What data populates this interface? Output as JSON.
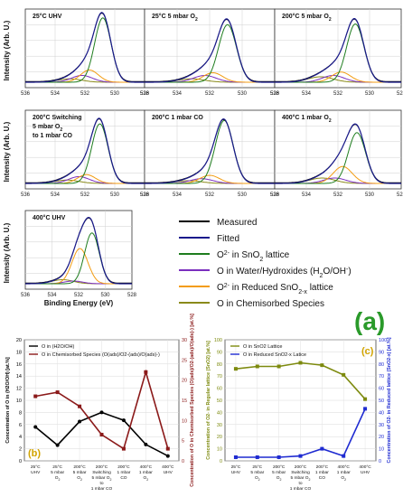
{
  "panel_labels": {
    "a": "(a)",
    "b": "(b)",
    "c": "(c)"
  },
  "colors": {
    "measured": "#000000",
    "fitted": "#1a1a8c",
    "lattice": "#1e7d1e",
    "water": "#7b2fbe",
    "reduced": "#f39c12",
    "chemisorbed": "#8a8a1a",
    "c_green": "#7d8a0e",
    "c_blue": "#1f2bd1",
    "b_black": "#000000",
    "b_red": "#8b1a1a",
    "label_green": "#2a9a2a"
  },
  "xps": {
    "ylabel": "Intensity (Arb. U.)",
    "xlabel": "Binding Energy (eV)",
    "ticks": [
      "536",
      "534",
      "532",
      "530",
      "528"
    ],
    "panels": [
      {
        "title": "25°C  UHV",
        "lattice": 530.8,
        "heights": [
          1.0,
          0.95,
          0.1,
          0.18,
          0.05
        ]
      },
      {
        "title": "25°C 5 mbar O",
        "sub": "2",
        "lattice": 530.9,
        "heights": [
          0.92,
          0.85,
          0.1,
          0.14,
          0.05
        ]
      },
      {
        "title": "200°C 5 mbar O",
        "sub": "2",
        "lattice": 530.9,
        "heights": [
          0.92,
          0.86,
          0.1,
          0.15,
          0.08
        ]
      },
      {
        "title": "200°C Switching",
        "lines": [
          "5 mbar O",
          "to 1 mbar CO"
        ],
        "lattice": 531.0,
        "heights": [
          0.95,
          0.88,
          0.1,
          0.13,
          0.05
        ]
      },
      {
        "title": "200°C 1 mbar CO",
        "lattice": 531.1,
        "heights": [
          0.95,
          0.93,
          0.07,
          0.12,
          0.04
        ]
      },
      {
        "title": "400°C 1 mbar O",
        "sub": "2",
        "lattice": 530.8,
        "heights": [
          0.82,
          0.75,
          0.08,
          0.25,
          0.08
        ]
      },
      {
        "title": "400°C UHV",
        "lattice": 531.0,
        "heights": [
          0.8,
          0.75,
          0.04,
          0.52,
          0.06
        ]
      }
    ]
  },
  "legend": [
    {
      "key": "measured",
      "text": "Measured"
    },
    {
      "key": "fitted",
      "text": "Fitted"
    },
    {
      "key": "lattice",
      "text": "O",
      "sup": "2-",
      "rest": " in SnO",
      "sub": "2",
      "rest2": " lattice"
    },
    {
      "key": "water",
      "text": "O in Water/Hydroxides (H",
      "sub": "2",
      "rest": "O/OH",
      "sup": "-",
      "rest2": ")"
    },
    {
      "key": "reduced",
      "text": "O",
      "sup": "2-",
      "rest": " in Reduced SnO",
      "sub": "2-x",
      "rest2": " lattice"
    },
    {
      "key": "chemisorbed",
      "text": "O in Chemisorbed Species"
    }
  ],
  "chart_data": [
    {
      "id": "b",
      "type": "line",
      "categories": [
        [
          "25°C",
          "UHV"
        ],
        [
          "25°C",
          "5 mbar",
          "O2"
        ],
        [
          "200°C",
          "5 mbar",
          "O2"
        ],
        [
          "200°C",
          "Switching",
          "5 mbar O2",
          "to",
          "1 mbar CO"
        ],
        [
          "200°C",
          "1 mbar",
          "CO"
        ],
        [
          "400°C",
          "1 mbar",
          "O2"
        ],
        [
          "400°C",
          "UHV"
        ]
      ],
      "ylabel": "Concentration of O in (H2O/OH) [at.%]",
      "y2label": "Concentration of O in Chemisorbed Species (O(ads)/O2-(ads)/O(ads)-) [at.%]",
      "ylim": [
        0,
        20
      ],
      "y2lim": [
        0,
        30
      ],
      "yticks": [
        0,
        2,
        4,
        6,
        8,
        10,
        12,
        14,
        16,
        18,
        20
      ],
      "y2ticks": [
        0,
        5,
        10,
        15,
        20,
        25,
        30
      ],
      "series": [
        {
          "name": "O in (H2O/OH)",
          "axis": "left",
          "values": [
            5.6,
            2.6,
            6.5,
            8.0,
            6.7,
            2.7,
            0.8
          ]
        },
        {
          "name": "O in Chemisorbed Species (O(ads)/O2-(ads)/O(ads)-)",
          "axis": "right",
          "values": [
            16.0,
            17.0,
            13.5,
            6.5,
            3.0,
            22.0,
            3.0
          ]
        }
      ]
    },
    {
      "id": "c",
      "type": "line",
      "categories": [
        [
          "25°C",
          "UHV"
        ],
        [
          "25°C",
          "5 mbar",
          "O2"
        ],
        [
          "200°C",
          "5 mbar",
          "O2"
        ],
        [
          "200°C",
          "Switching",
          "5 mbar O2",
          "to",
          "1 mbar CO"
        ],
        [
          "200°C",
          "1 mbar",
          "CO"
        ],
        [
          "400°C",
          "1 mbar",
          "O2"
        ],
        [
          "400°C",
          "UHV"
        ]
      ],
      "ylabel": "Concentration of O2- in Regular lattice (SnO2) [at.%]",
      "y2label": "Concentration of O2- in Reduced lattice (SnO2-x) [at.%]",
      "ylim": [
        0,
        100
      ],
      "y2lim": [
        0,
        100
      ],
      "yticks": [
        0,
        10,
        20,
        30,
        40,
        50,
        60,
        70,
        80,
        90,
        100
      ],
      "y2ticks": [
        0,
        10,
        20,
        30,
        40,
        50,
        60,
        70,
        80,
        90,
        100
      ],
      "series": [
        {
          "name": "O in SnO2 Lattice",
          "axis": "left",
          "values": [
            76,
            78,
            78,
            81,
            79,
            71,
            51
          ]
        },
        {
          "name": "O in Reduced SnO2-x Latice",
          "axis": "right",
          "values": [
            3,
            3,
            3,
            4,
            10,
            4,
            43
          ]
        }
      ]
    }
  ]
}
